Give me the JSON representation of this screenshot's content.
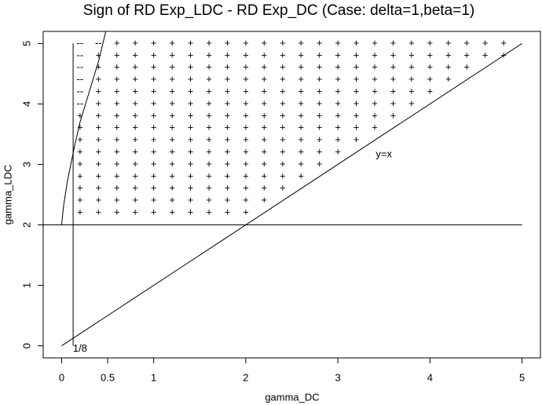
{
  "chart_data": {
    "type": "symbol-grid",
    "title": "Sign of RD Exp_LDC - RD Exp_DC (Case: delta=1,beta=1)",
    "xlabel": "gamma_DC",
    "ylabel": "gamma_LDC",
    "xlim": [
      -0.2,
      5.2
    ],
    "ylim": [
      -0.2,
      5.2
    ],
    "xticks": [
      0,
      0.5,
      1,
      2,
      3,
      4,
      5
    ],
    "yticks": [
      0,
      1,
      2,
      3,
      4,
      5
    ],
    "grid_x": [
      0.2,
      0.4,
      0.6,
      0.8,
      1.0,
      1.2,
      1.4,
      1.6,
      1.8,
      2.0,
      2.2,
      2.4,
      2.6,
      2.8,
      3.0,
      3.2,
      3.4,
      3.6,
      3.8,
      4.0,
      4.2,
      4.4,
      4.6,
      4.8
    ],
    "rows": [
      {
        "y": 5.0,
        "cells": [
          "--",
          "--",
          "+",
          "+",
          "+",
          "+",
          "+",
          "+",
          "+",
          "+",
          "+",
          "+",
          "+",
          "+",
          "+",
          "+",
          "+",
          "+",
          "+",
          "+",
          "+",
          "+",
          "+",
          "+"
        ]
      },
      {
        "y": 4.8,
        "cells": [
          "--",
          "+",
          "+",
          "+",
          "+",
          "+",
          "+",
          "+",
          "+",
          "+",
          "+",
          "+",
          "+",
          "+",
          "+",
          "+",
          "+",
          "+",
          "+",
          "+",
          "+",
          "+",
          "+",
          "+"
        ]
      },
      {
        "y": 4.6,
        "cells": [
          "--",
          "+",
          "+",
          "+",
          "+",
          "+",
          "+",
          "+",
          "+",
          "+",
          "+",
          "+",
          "+",
          "+",
          "+",
          "+",
          "+",
          "+",
          "+",
          "+",
          "+",
          "+",
          null,
          null
        ]
      },
      {
        "y": 4.4,
        "cells": [
          "--",
          "+",
          "+",
          "+",
          "+",
          "+",
          "+",
          "+",
          "+",
          "+",
          "+",
          "+",
          "+",
          "+",
          "+",
          "+",
          "+",
          "+",
          "+",
          "+",
          "+",
          null,
          null,
          null
        ]
      },
      {
        "y": 4.2,
        "cells": [
          "--",
          "+",
          "+",
          "+",
          "+",
          "+",
          "+",
          "+",
          "+",
          "+",
          "+",
          "+",
          "+",
          "+",
          "+",
          "+",
          "+",
          "+",
          "+",
          "+",
          null,
          null,
          null,
          null
        ]
      },
      {
        "y": 4.0,
        "cells": [
          "--",
          "+",
          "+",
          "+",
          "+",
          "+",
          "+",
          "+",
          "+",
          "+",
          "+",
          "+",
          "+",
          "+",
          "+",
          "+",
          "+",
          "+",
          "+",
          null,
          null,
          null,
          null,
          null
        ]
      },
      {
        "y": 3.8,
        "cells": [
          "+",
          "+",
          "+",
          "+",
          "+",
          "+",
          "+",
          "+",
          "+",
          "+",
          "+",
          "+",
          "+",
          "+",
          "+",
          "+",
          "+",
          "+",
          null,
          null,
          null,
          null,
          null,
          null
        ]
      },
      {
        "y": 3.6,
        "cells": [
          "+",
          "+",
          "+",
          "+",
          "+",
          "+",
          "+",
          "+",
          "+",
          "+",
          "+",
          "+",
          "+",
          "+",
          "+",
          "+",
          "+",
          null,
          null,
          null,
          null,
          null,
          null,
          null
        ]
      },
      {
        "y": 3.4,
        "cells": [
          "+",
          "+",
          "+",
          "+",
          "+",
          "+",
          "+",
          "+",
          "+",
          "+",
          "+",
          "+",
          "+",
          "+",
          "+",
          "+",
          null,
          null,
          null,
          null,
          null,
          null,
          null,
          null
        ]
      },
      {
        "y": 3.2,
        "cells": [
          "+",
          "+",
          "+",
          "+",
          "+",
          "+",
          "+",
          "+",
          "+",
          "+",
          "+",
          "+",
          "+",
          "+",
          "+",
          null,
          null,
          null,
          null,
          null,
          null,
          null,
          null,
          null
        ]
      },
      {
        "y": 3.0,
        "cells": [
          "+",
          "+",
          "+",
          "+",
          "+",
          "+",
          "+",
          "+",
          "+",
          "+",
          "+",
          "+",
          "+",
          "+",
          null,
          null,
          null,
          null,
          null,
          null,
          null,
          null,
          null,
          null
        ]
      },
      {
        "y": 2.8,
        "cells": [
          "+",
          "+",
          "+",
          "+",
          "+",
          "+",
          "+",
          "+",
          "+",
          "+",
          "+",
          "+",
          "+",
          null,
          null,
          null,
          null,
          null,
          null,
          null,
          null,
          null,
          null,
          null
        ]
      },
      {
        "y": 2.6,
        "cells": [
          "+",
          "+",
          "+",
          "+",
          "+",
          "+",
          "+",
          "+",
          "+",
          "+",
          "+",
          "+",
          null,
          null,
          null,
          null,
          null,
          null,
          null,
          null,
          null,
          null,
          null,
          null
        ]
      },
      {
        "y": 2.4,
        "cells": [
          "+",
          "+",
          "+",
          "+",
          "+",
          "+",
          "+",
          "+",
          "+",
          "+",
          "+",
          null,
          null,
          null,
          null,
          null,
          null,
          null,
          null,
          null,
          null,
          null,
          null,
          null
        ]
      },
      {
        "y": 2.2,
        "cells": [
          "+",
          "+",
          "+",
          "+",
          "+",
          "+",
          "+",
          "+",
          "+",
          "+",
          null,
          null,
          null,
          null,
          null,
          null,
          null,
          null,
          null,
          null,
          null,
          null,
          null,
          null
        ]
      }
    ],
    "lines": [
      {
        "x": [
          -0.2,
          5.0
        ],
        "y": [
          2,
          2
        ]
      },
      {
        "x": [
          0.125,
          0.125
        ],
        "y": [
          0,
          5
        ]
      },
      {
        "x": [
          0,
          5
        ],
        "y": [
          0,
          5
        ]
      },
      {
        "x": [
          0,
          0.02,
          0.06,
          0.1,
          0.14,
          0.2,
          0.3,
          0.4,
          0.48
        ],
        "y": [
          2,
          2.3,
          2.7,
          3.0,
          3.3,
          3.7,
          4.2,
          4.7,
          5.2
        ]
      }
    ],
    "annotations": [
      {
        "text": "y=x",
        "x": 3.5,
        "y": 3.16
      },
      {
        "text": "1/8",
        "x": 0.2,
        "y": -0.05
      }
    ]
  }
}
